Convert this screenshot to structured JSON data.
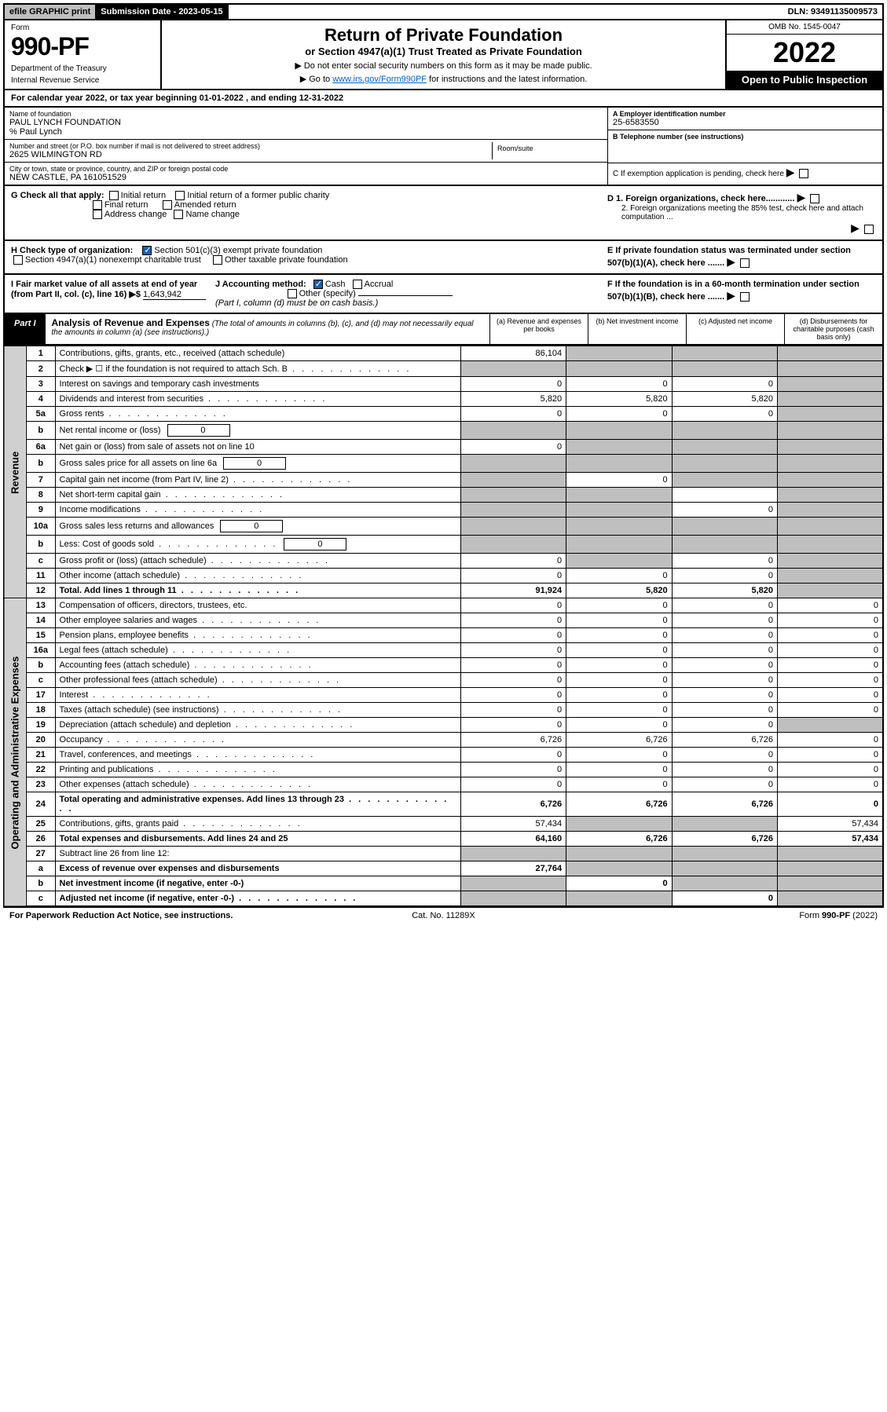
{
  "topbar": {
    "efile": "efile GRAPHIC print",
    "sub_label": "Submission Date - 2023-05-15",
    "dln": "DLN: 93491135009573"
  },
  "header": {
    "form_label": "Form",
    "form_num": "990-PF",
    "dept1": "Department of the Treasury",
    "dept2": "Internal Revenue Service",
    "title": "Return of Private Foundation",
    "subtitle": "or Section 4947(a)(1) Trust Treated as Private Foundation",
    "note1": "▶ Do not enter social security numbers on this form as it may be made public.",
    "note2_pre": "▶ Go to ",
    "note2_link": "www.irs.gov/Form990PF",
    "note2_post": " for instructions and the latest information.",
    "omb": "OMB No. 1545-0047",
    "year": "2022",
    "open": "Open to Public Inspection"
  },
  "cal_year": "For calendar year 2022, or tax year beginning 01-01-2022                          , and ending 12-31-2022",
  "info": {
    "name_label": "Name of foundation",
    "name": "PAUL LYNCH FOUNDATION",
    "care_of": "% Paul Lynch",
    "addr_label": "Number and street (or P.O. box number if mail is not delivered to street address)",
    "addr": "2625 WILMINGTON RD",
    "room_label": "Room/suite",
    "city_label": "City or town, state or province, country, and ZIP or foreign postal code",
    "city": "NEW CASTLE, PA  161051529",
    "ein_label": "A Employer identification number",
    "ein": "25-6583550",
    "phone_label": "B Telephone number (see instructions)",
    "c_label": "C If exemption application is pending, check here",
    "d1_label": "D 1. Foreign organizations, check here............",
    "d2_label": "2. Foreign organizations meeting the 85% test, check here and attach computation ...",
    "e_label": "E  If private foundation status was terminated under section 507(b)(1)(A), check here .......",
    "f_label": "F  If the foundation is in a 60-month termination under section 507(b)(1)(B), check here ......."
  },
  "checks": {
    "g_label": "G Check all that apply:",
    "g_initial": "Initial return",
    "g_initial_former": "Initial return of a former public charity",
    "g_final": "Final return",
    "g_amended": "Amended return",
    "g_addr": "Address change",
    "g_name": "Name change",
    "h_label": "H Check type of organization:",
    "h_501c3": "Section 501(c)(3) exempt private foundation",
    "h_4947": "Section 4947(a)(1) nonexempt charitable trust",
    "h_other_tax": "Other taxable private foundation",
    "i_label": "I Fair market value of all assets at end of year (from Part II, col. (c), line 16) ▶$",
    "i_val": "1,643,942",
    "j_label": "J Accounting method:",
    "j_cash": "Cash",
    "j_accrual": "Accrual",
    "j_other": "Other (specify)",
    "j_note": "(Part I, column (d) must be on cash basis.)"
  },
  "part1": {
    "badge": "Part I",
    "title_b": "Analysis of Revenue and Expenses",
    "title_rest": " (The total of amounts in columns (b), (c), and (d) may not necessarily equal the amounts in column (a) (see instructions).)",
    "col_a": "(a)   Revenue and expenses per books",
    "col_b": "(b)   Net investment income",
    "col_c": "(c)   Adjusted net income",
    "col_d": "(d)   Disbursements for charitable purposes (cash basis only)"
  },
  "revenue_label": "Revenue",
  "expenses_label": "Operating and Administrative Expenses",
  "rows": [
    {
      "n": "1",
      "label": "Contributions, gifts, grants, etc., received (attach schedule)",
      "a": "86,104",
      "b": "",
      "c": "",
      "d": "",
      "shade_b": true,
      "shade_c": true,
      "shade_d": true
    },
    {
      "n": "2",
      "label": "Check ▶ ☐ if the foundation is not required to attach Sch. B",
      "dots": true,
      "a": "",
      "b": "",
      "c": "",
      "d": "",
      "shade_a": true,
      "shade_b": true,
      "shade_c": true,
      "shade_d": true
    },
    {
      "n": "3",
      "label": "Interest on savings and temporary cash investments",
      "a": "0",
      "b": "0",
      "c": "0",
      "d": "",
      "shade_d": true
    },
    {
      "n": "4",
      "label": "Dividends and interest from securities",
      "dots": true,
      "a": "5,820",
      "b": "5,820",
      "c": "5,820",
      "d": "",
      "shade_d": true
    },
    {
      "n": "5a",
      "label": "Gross rents",
      "dots": true,
      "a": "0",
      "b": "0",
      "c": "0",
      "d": "",
      "shade_d": true
    },
    {
      "n": "b",
      "label": "Net rental income or (loss)",
      "inline": "0",
      "a": "",
      "b": "",
      "c": "",
      "d": "",
      "shade_a": true,
      "shade_b": true,
      "shade_c": true,
      "shade_d": true
    },
    {
      "n": "6a",
      "label": "Net gain or (loss) from sale of assets not on line 10",
      "a": "0",
      "b": "",
      "c": "",
      "d": "",
      "shade_b": true,
      "shade_c": true,
      "shade_d": true
    },
    {
      "n": "b",
      "label": "Gross sales price for all assets on line 6a",
      "inline": "0",
      "a": "",
      "b": "",
      "c": "",
      "d": "",
      "shade_a": true,
      "shade_b": true,
      "shade_c": true,
      "shade_d": true
    },
    {
      "n": "7",
      "label": "Capital gain net income (from Part IV, line 2)",
      "dots": true,
      "a": "",
      "b": "0",
      "c": "",
      "d": "",
      "shade_a": true,
      "shade_c": true,
      "shade_d": true
    },
    {
      "n": "8",
      "label": "Net short-term capital gain",
      "dots": true,
      "a": "",
      "b": "",
      "c": "",
      "d": "",
      "shade_a": true,
      "shade_b": true,
      "shade_d": true
    },
    {
      "n": "9",
      "label": "Income modifications",
      "dots": true,
      "a": "",
      "b": "",
      "c": "0",
      "d": "",
      "shade_a": true,
      "shade_b": true,
      "shade_d": true
    },
    {
      "n": "10a",
      "label": "Gross sales less returns and allowances",
      "inline": "0",
      "a": "",
      "b": "",
      "c": "",
      "d": "",
      "shade_a": true,
      "shade_b": true,
      "shade_c": true,
      "shade_d": true
    },
    {
      "n": "b",
      "label": "Less: Cost of goods sold",
      "dots": true,
      "inline": "0",
      "a": "",
      "b": "",
      "c": "",
      "d": "",
      "shade_a": true,
      "shade_b": true,
      "shade_c": true,
      "shade_d": true
    },
    {
      "n": "c",
      "label": "Gross profit or (loss) (attach schedule)",
      "dots": true,
      "a": "0",
      "b": "",
      "c": "0",
      "d": "",
      "shade_b": true,
      "shade_d": true
    },
    {
      "n": "11",
      "label": "Other income (attach schedule)",
      "dots": true,
      "a": "0",
      "b": "0",
      "c": "0",
      "d": "",
      "shade_d": true
    },
    {
      "n": "12",
      "label": "Total. Add lines 1 through 11",
      "dots": true,
      "bold": true,
      "a": "91,924",
      "b": "5,820",
      "c": "5,820",
      "d": "",
      "shade_d": true
    },
    {
      "n": "13",
      "label": "Compensation of officers, directors, trustees, etc.",
      "a": "0",
      "b": "0",
      "c": "0",
      "d": "0"
    },
    {
      "n": "14",
      "label": "Other employee salaries and wages",
      "dots": true,
      "a": "0",
      "b": "0",
      "c": "0",
      "d": "0"
    },
    {
      "n": "15",
      "label": "Pension plans, employee benefits",
      "dots": true,
      "a": "0",
      "b": "0",
      "c": "0",
      "d": "0"
    },
    {
      "n": "16a",
      "label": "Legal fees (attach schedule)",
      "dots": true,
      "a": "0",
      "b": "0",
      "c": "0",
      "d": "0"
    },
    {
      "n": "b",
      "label": "Accounting fees (attach schedule)",
      "dots": true,
      "a": "0",
      "b": "0",
      "c": "0",
      "d": "0"
    },
    {
      "n": "c",
      "label": "Other professional fees (attach schedule)",
      "dots": true,
      "a": "0",
      "b": "0",
      "c": "0",
      "d": "0"
    },
    {
      "n": "17",
      "label": "Interest",
      "dots": true,
      "a": "0",
      "b": "0",
      "c": "0",
      "d": "0"
    },
    {
      "n": "18",
      "label": "Taxes (attach schedule) (see instructions)",
      "dots": true,
      "a": "0",
      "b": "0",
      "c": "0",
      "d": "0"
    },
    {
      "n": "19",
      "label": "Depreciation (attach schedule) and depletion",
      "dots": true,
      "a": "0",
      "b": "0",
      "c": "0",
      "d": "",
      "shade_d": true
    },
    {
      "n": "20",
      "label": "Occupancy",
      "dots": true,
      "a": "6,726",
      "b": "6,726",
      "c": "6,726",
      "d": "0"
    },
    {
      "n": "21",
      "label": "Travel, conferences, and meetings",
      "dots": true,
      "a": "0",
      "b": "0",
      "c": "0",
      "d": "0"
    },
    {
      "n": "22",
      "label": "Printing and publications",
      "dots": true,
      "a": "0",
      "b": "0",
      "c": "0",
      "d": "0"
    },
    {
      "n": "23",
      "label": "Other expenses (attach schedule)",
      "dots": true,
      "a": "0",
      "b": "0",
      "c": "0",
      "d": "0"
    },
    {
      "n": "24",
      "label": "Total operating and administrative expenses. Add lines 13 through 23",
      "dots": true,
      "bold": true,
      "a": "6,726",
      "b": "6,726",
      "c": "6,726",
      "d": "0"
    },
    {
      "n": "25",
      "label": "Contributions, gifts, grants paid",
      "dots": true,
      "a": "57,434",
      "b": "",
      "c": "",
      "d": "57,434",
      "shade_b": true,
      "shade_c": true
    },
    {
      "n": "26",
      "label": "Total expenses and disbursements. Add lines 24 and 25",
      "bold": true,
      "a": "64,160",
      "b": "6,726",
      "c": "6,726",
      "d": "57,434"
    },
    {
      "n": "27",
      "label": "Subtract line 26 from line 12:",
      "a": "",
      "b": "",
      "c": "",
      "d": "",
      "shade_a": true,
      "shade_b": true,
      "shade_c": true,
      "shade_d": true
    },
    {
      "n": "a",
      "label": "Excess of revenue over expenses and disbursements",
      "bold": true,
      "a": "27,764",
      "b": "",
      "c": "",
      "d": "",
      "shade_b": true,
      "shade_c": true,
      "shade_d": true
    },
    {
      "n": "b",
      "label": "Net investment income (if negative, enter -0-)",
      "bold": true,
      "a": "",
      "b": "0",
      "c": "",
      "d": "",
      "shade_a": true,
      "shade_c": true,
      "shade_d": true
    },
    {
      "n": "c",
      "label": "Adjusted net income (if negative, enter -0-)",
      "dots": true,
      "bold": true,
      "a": "",
      "b": "",
      "c": "0",
      "d": "",
      "shade_a": true,
      "shade_b": true,
      "shade_d": true
    }
  ],
  "footer": {
    "left": "For Paperwork Reduction Act Notice, see instructions.",
    "mid": "Cat. No. 11289X",
    "right": "Form 990-PF (2022)"
  }
}
